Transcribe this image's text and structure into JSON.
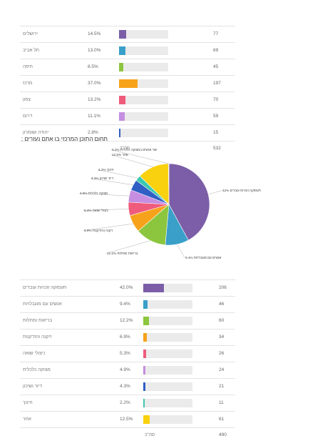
{
  "table1": {
    "rows": [
      {
        "label": "ירושלים",
        "pct": "14.5%",
        "value": 14.5,
        "count": "77",
        "color": "#7b5ea7"
      },
      {
        "label": "תל אביב",
        "pct": "13.0%",
        "value": 13.0,
        "count": "69",
        "color": "#3aa0c9"
      },
      {
        "label": "חיפה",
        "pct": "8.5%",
        "value": 8.5,
        "count": "45",
        "color": "#8cc63f"
      },
      {
        "label": "מרכז",
        "pct": "37.0%",
        "value": 37.0,
        "count": "197",
        "color": "#f7a21b"
      },
      {
        "label": "צפון",
        "pct": "13.2%",
        "value": 13.2,
        "count": "70",
        "color": "#ef5b7b"
      },
      {
        "label": "דרום",
        "pct": "11.1%",
        "value": 11.1,
        "count": "59",
        "color": "#c58ee0"
      },
      {
        "label": "יהודה ושומרון",
        "pct": "2.8%",
        "value": 2.8,
        "count": "15",
        "color": "#2f5fc4"
      }
    ],
    "total_label": "סה\"כ",
    "total_count": "532"
  },
  "section_title": "תחום התוכן המרכזי בו אתם נעזרים :",
  "chart_data": {
    "type": "pie",
    "slices": [
      {
        "label": "תעסוקה וזכויות עובדים",
        "pct_label": "42%",
        "value": 42.0,
        "color": "#7b5ea7"
      },
      {
        "label": "אנשים עם מוגבלויות",
        "pct_label": "9.4%",
        "value": 9.4,
        "color": "#3aa0c9"
      },
      {
        "label": "בריאות ומחלות",
        "pct_label": "12.2%",
        "value": 12.2,
        "color": "#8cc63f"
      },
      {
        "label": "זיקנה והזדקנות",
        "pct_label": "6.9%",
        "value": 6.9,
        "color": "#f7a21b"
      },
      {
        "label": "ניצולי שואה",
        "pct_label": "5.3%",
        "value": 5.3,
        "color": "#ef5b7b"
      },
      {
        "label": "מצוקה כלכלית",
        "pct_label": "4.9%",
        "value": 4.9,
        "color": "#c58ee0"
      },
      {
        "label": "דיור ושיכון",
        "pct_label": "4.3%",
        "value": 4.3,
        "color": "#2f5fc4"
      },
      {
        "label": "חינוך",
        "pct_label": "2.2%",
        "value": 2.2,
        "color": "#3cc7b0"
      },
      {
        "label": "אחר",
        "pct_label": "12.5%",
        "value": 12.5,
        "color": "#f9d10f"
      },
      {
        "label": "שני אנשים במצוקה כלכלית",
        "pct_label": "0.2%",
        "value": 0.2,
        "color": "#e74c3c"
      }
    ]
  },
  "table2": {
    "rows": [
      {
        "label": "תעסוקה וזכויות עובדים",
        "pct": "42.0%",
        "value": 42.0,
        "count": "206",
        "color": "#7b5ea7"
      },
      {
        "label": "אנשים עם מוגבלויות",
        "pct": "9.4%",
        "value": 9.4,
        "count": "46",
        "color": "#3aa0c9"
      },
      {
        "label": "בריאות ומחלות",
        "pct": "12.2%",
        "value": 12.2,
        "count": "60",
        "color": "#8cc63f"
      },
      {
        "label": "זיקנה והזדקנות",
        "pct": "6.9%",
        "value": 6.9,
        "count": "34",
        "color": "#f7a21b"
      },
      {
        "label": "ניצולי שואה",
        "pct": "5.3%",
        "value": 5.3,
        "count": "26",
        "color": "#ef5b7b"
      },
      {
        "label": "מצוקה כלכלית",
        "pct": "4.9%",
        "value": 4.9,
        "count": "24",
        "color": "#c58ee0"
      },
      {
        "label": "דיור ושיכון",
        "pct": "4.3%",
        "value": 4.3,
        "count": "21",
        "color": "#2f5fc4"
      },
      {
        "label": "חינוך",
        "pct": "2.2%",
        "value": 2.2,
        "count": "11",
        "color": "#3cc7b0"
      },
      {
        "label": "אחר",
        "pct": "12.5%",
        "value": 12.5,
        "count": "61",
        "color": "#f9d10f"
      }
    ],
    "total_label": "סה\"כ",
    "total_count": "490"
  }
}
